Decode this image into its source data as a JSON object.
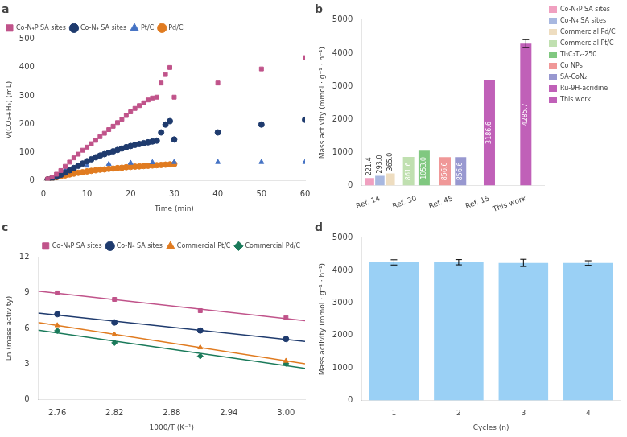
{
  "chart_data": [
    {
      "type": "scatter",
      "title": "a",
      "xlabel": "Time (min)",
      "ylabel": "V(CO₂+H₂) (mL)",
      "xlim": [
        0,
        60
      ],
      "xticks": [
        0,
        10,
        20,
        30,
        40,
        50,
        60
      ],
      "ylim": [
        0,
        500
      ],
      "yticks": [
        0,
        100,
        200,
        300,
        400,
        500
      ],
      "grid": false,
      "legend": "upper left",
      "series": [
        {
          "name": "Co-N₄P SA sites",
          "color": "#c0538a",
          "marker": "square",
          "x": [
            1,
            2,
            3,
            4,
            5,
            6,
            7,
            8,
            9,
            10,
            11,
            12,
            13,
            14,
            15,
            16,
            17,
            18,
            19,
            20,
            21,
            22,
            23,
            24,
            25,
            26,
            27,
            28,
            29,
            30,
            40,
            50,
            60
          ],
          "values": [
            5,
            12,
            22,
            35,
            50,
            65,
            80,
            93,
            107,
            118,
            130,
            142,
            155,
            167,
            180,
            192,
            205,
            217,
            230,
            243,
            255,
            265,
            275,
            285,
            292,
            295,
            345,
            375,
            400,
            295,
            345,
            395,
            435
          ]
        },
        {
          "name": "Co-N₄ SA sites",
          "color": "#1f3b6e",
          "marker": "circle",
          "x": [
            1,
            2,
            3,
            4,
            5,
            6,
            7,
            8,
            9,
            10,
            11,
            12,
            13,
            14,
            15,
            16,
            17,
            18,
            19,
            20,
            21,
            22,
            23,
            24,
            25,
            26,
            27,
            28,
            29,
            30,
            40,
            50,
            60
          ],
          "values": [
            3,
            7,
            13,
            20,
            28,
            36,
            44,
            52,
            60,
            68,
            75,
            82,
            88,
            93,
            98,
            103,
            108,
            113,
            118,
            122,
            126,
            129,
            132,
            135,
            138,
            141,
            170,
            198,
            210,
            145,
            170,
            198,
            215
          ]
        },
        {
          "name": "Pt/C",
          "color": "#4472c4",
          "marker": "triangle",
          "x": [
            5,
            10,
            15,
            20,
            25,
            30,
            40,
            50,
            60
          ],
          "values": [
            38,
            52,
            58,
            62,
            64,
            65,
            65,
            65,
            65
          ]
        },
        {
          "name": "Pd/C",
          "color": "#e07b20",
          "marker": "circle",
          "x": [
            1,
            2,
            3,
            4,
            5,
            6,
            7,
            8,
            9,
            10,
            11,
            12,
            13,
            14,
            15,
            16,
            17,
            18,
            19,
            20,
            21,
            22,
            23,
            24,
            25,
            26,
            27,
            28,
            29,
            30
          ],
          "values": [
            3,
            7,
            11,
            15,
            18,
            21,
            24,
            27,
            29,
            32,
            34,
            36,
            38,
            39,
            41,
            42,
            44,
            45,
            47,
            48,
            49,
            50,
            51,
            52,
            53,
            54,
            55,
            56,
            57,
            58
          ]
        }
      ]
    },
    {
      "type": "bar",
      "title": "b",
      "ylabel": "Mass activity (mmol · g⁻¹ · h⁻¹)",
      "categories": [
        "Ref. 14",
        "Ref. 30",
        "Ref. 45",
        "Ref. 15",
        "This work"
      ],
      "ylim": [
        0,
        5000
      ],
      "yticks": [
        0,
        1000,
        2000,
        3000,
        4000,
        5000
      ],
      "grid": false,
      "legend": "right",
      "data_labels": true,
      "series": [
        {
          "name": "Co-N₄P SA sites",
          "color": "#f0a0c0",
          "values": [
            221.4,
            null,
            null,
            null,
            null
          ],
          "value_labels": [
            "221.4",
            null,
            null,
            null,
            null
          ]
        },
        {
          "name": "Co-N₄ SA sites",
          "color": "#a8b8e0",
          "values": [
            293.0,
            null,
            null,
            null,
            null
          ],
          "value_labels": [
            "293.0",
            null,
            null,
            null,
            null
          ]
        },
        {
          "name": "Commercial Pd/C",
          "color": "#eeddc0",
          "values": [
            365.0,
            null,
            null,
            null,
            null
          ],
          "value_labels": [
            "365.0",
            null,
            null,
            null,
            null
          ]
        },
        {
          "name": "Commercial Pt/C",
          "color": "#c0e0b0",
          "values": [
            null,
            861.6,
            null,
            null,
            null
          ],
          "value_labels": [
            null,
            "861.6",
            null,
            null,
            null
          ]
        },
        {
          "name": "Ti₃C₂Tₓ-250",
          "color": "#80c880",
          "values": [
            null,
            1053.0,
            null,
            null,
            null
          ],
          "value_labels": [
            null,
            "1053.0",
            null,
            null,
            null
          ]
        },
        {
          "name": "Co NPs",
          "color": "#f09898",
          "values": [
            null,
            null,
            856.6,
            null,
            null
          ],
          "value_labels": [
            null,
            null,
            "856.6",
            null,
            null
          ]
        },
        {
          "name": "SA-CoN₂",
          "color": "#9898d0",
          "values": [
            null,
            null,
            856.6,
            null,
            null
          ],
          "value_labels": [
            null,
            null,
            "856.6",
            null,
            null
          ]
        },
        {
          "name": "Ru-9H-acridine",
          "color": "#c060b8",
          "values": [
            null,
            null,
            null,
            3186.6,
            null
          ],
          "value_labels": [
            null,
            null,
            null,
            "3186.6",
            null
          ]
        },
        {
          "name": "This work",
          "color": "#c060b8",
          "values": [
            null,
            null,
            null,
            null,
            4285.7
          ],
          "value_labels": [
            null,
            null,
            null,
            null,
            "4285.7"
          ],
          "errors": [
            null,
            null,
            null,
            null,
            120
          ]
        }
      ]
    },
    {
      "type": "scatter",
      "title": "c",
      "xlabel": "1000/T (K⁻¹)",
      "ylabel": "Ln (mass activity)",
      "xlim": [
        2.74,
        3.02
      ],
      "xticks": [
        2.76,
        2.82,
        2.88,
        2.94,
        {
          "value": 3.0,
          "label": "3.00"
        }
      ],
      "ylim": [
        0,
        12
      ],
      "yticks": [
        0,
        3,
        6,
        9,
        12
      ],
      "grid": false,
      "legend": "upper right",
      "series": [
        {
          "name": "Co-N₄P SA sites",
          "color": "#c0538a",
          "marker": "square",
          "x": [
            2.76,
            2.82,
            2.91,
            3.0
          ],
          "values": [
            9.0,
            8.45,
            7.5,
            6.9
          ],
          "fit_x": [
            2.74,
            3.02
          ],
          "fit_values": [
            9.1448,
            6.6464
          ]
        },
        {
          "name": "Co-N₄ SA sites",
          "color": "#1f3b6e",
          "marker": "circle",
          "x": [
            2.76,
            2.82,
            2.91,
            3.0
          ],
          "values": [
            7.2,
            6.5,
            5.82,
            5.1
          ],
          "fit_x": [
            2.74,
            3.02
          ],
          "fit_values": [
            7.2877,
            4.8941
          ]
        },
        {
          "name": "Commercial Pt/C",
          "color": "#e07b20",
          "marker": "triangle",
          "x": [
            2.76,
            2.82,
            2.91,
            3.0
          ],
          "values": [
            6.25,
            5.47,
            4.38,
            3.25
          ],
          "fit_x": [
            2.74,
            3.02
          ],
          "fit_values": [
            6.4867,
            3.0016
          ]
        },
        {
          "name": "Commercial Pd/C",
          "color": "#1a7a5a",
          "marker": "diamond",
          "x": [
            2.76,
            2.82,
            2.91,
            3.0
          ],
          "values": [
            5.8,
            4.78,
            3.65,
            3.02
          ],
          "fit_x": [
            2.74,
            3.02
          ],
          "fit_values": [
            5.8409,
            2.6111
          ]
        }
      ]
    },
    {
      "type": "bar",
      "title": "d",
      "xlabel": "Cycles (n)",
      "ylabel": "Mass activity (mmol · g⁻¹ · h⁻¹)",
      "categories": [
        "1",
        "2",
        "3",
        "4"
      ],
      "values": [
        4250,
        4255,
        4235,
        4230
      ],
      "errors": [
        80,
        80,
        110,
        70
      ],
      "ylim": [
        0,
        5000
      ],
      "yticks": [
        0,
        1000,
        2000,
        3000,
        4000,
        5000
      ],
      "grid": false
    }
  ]
}
